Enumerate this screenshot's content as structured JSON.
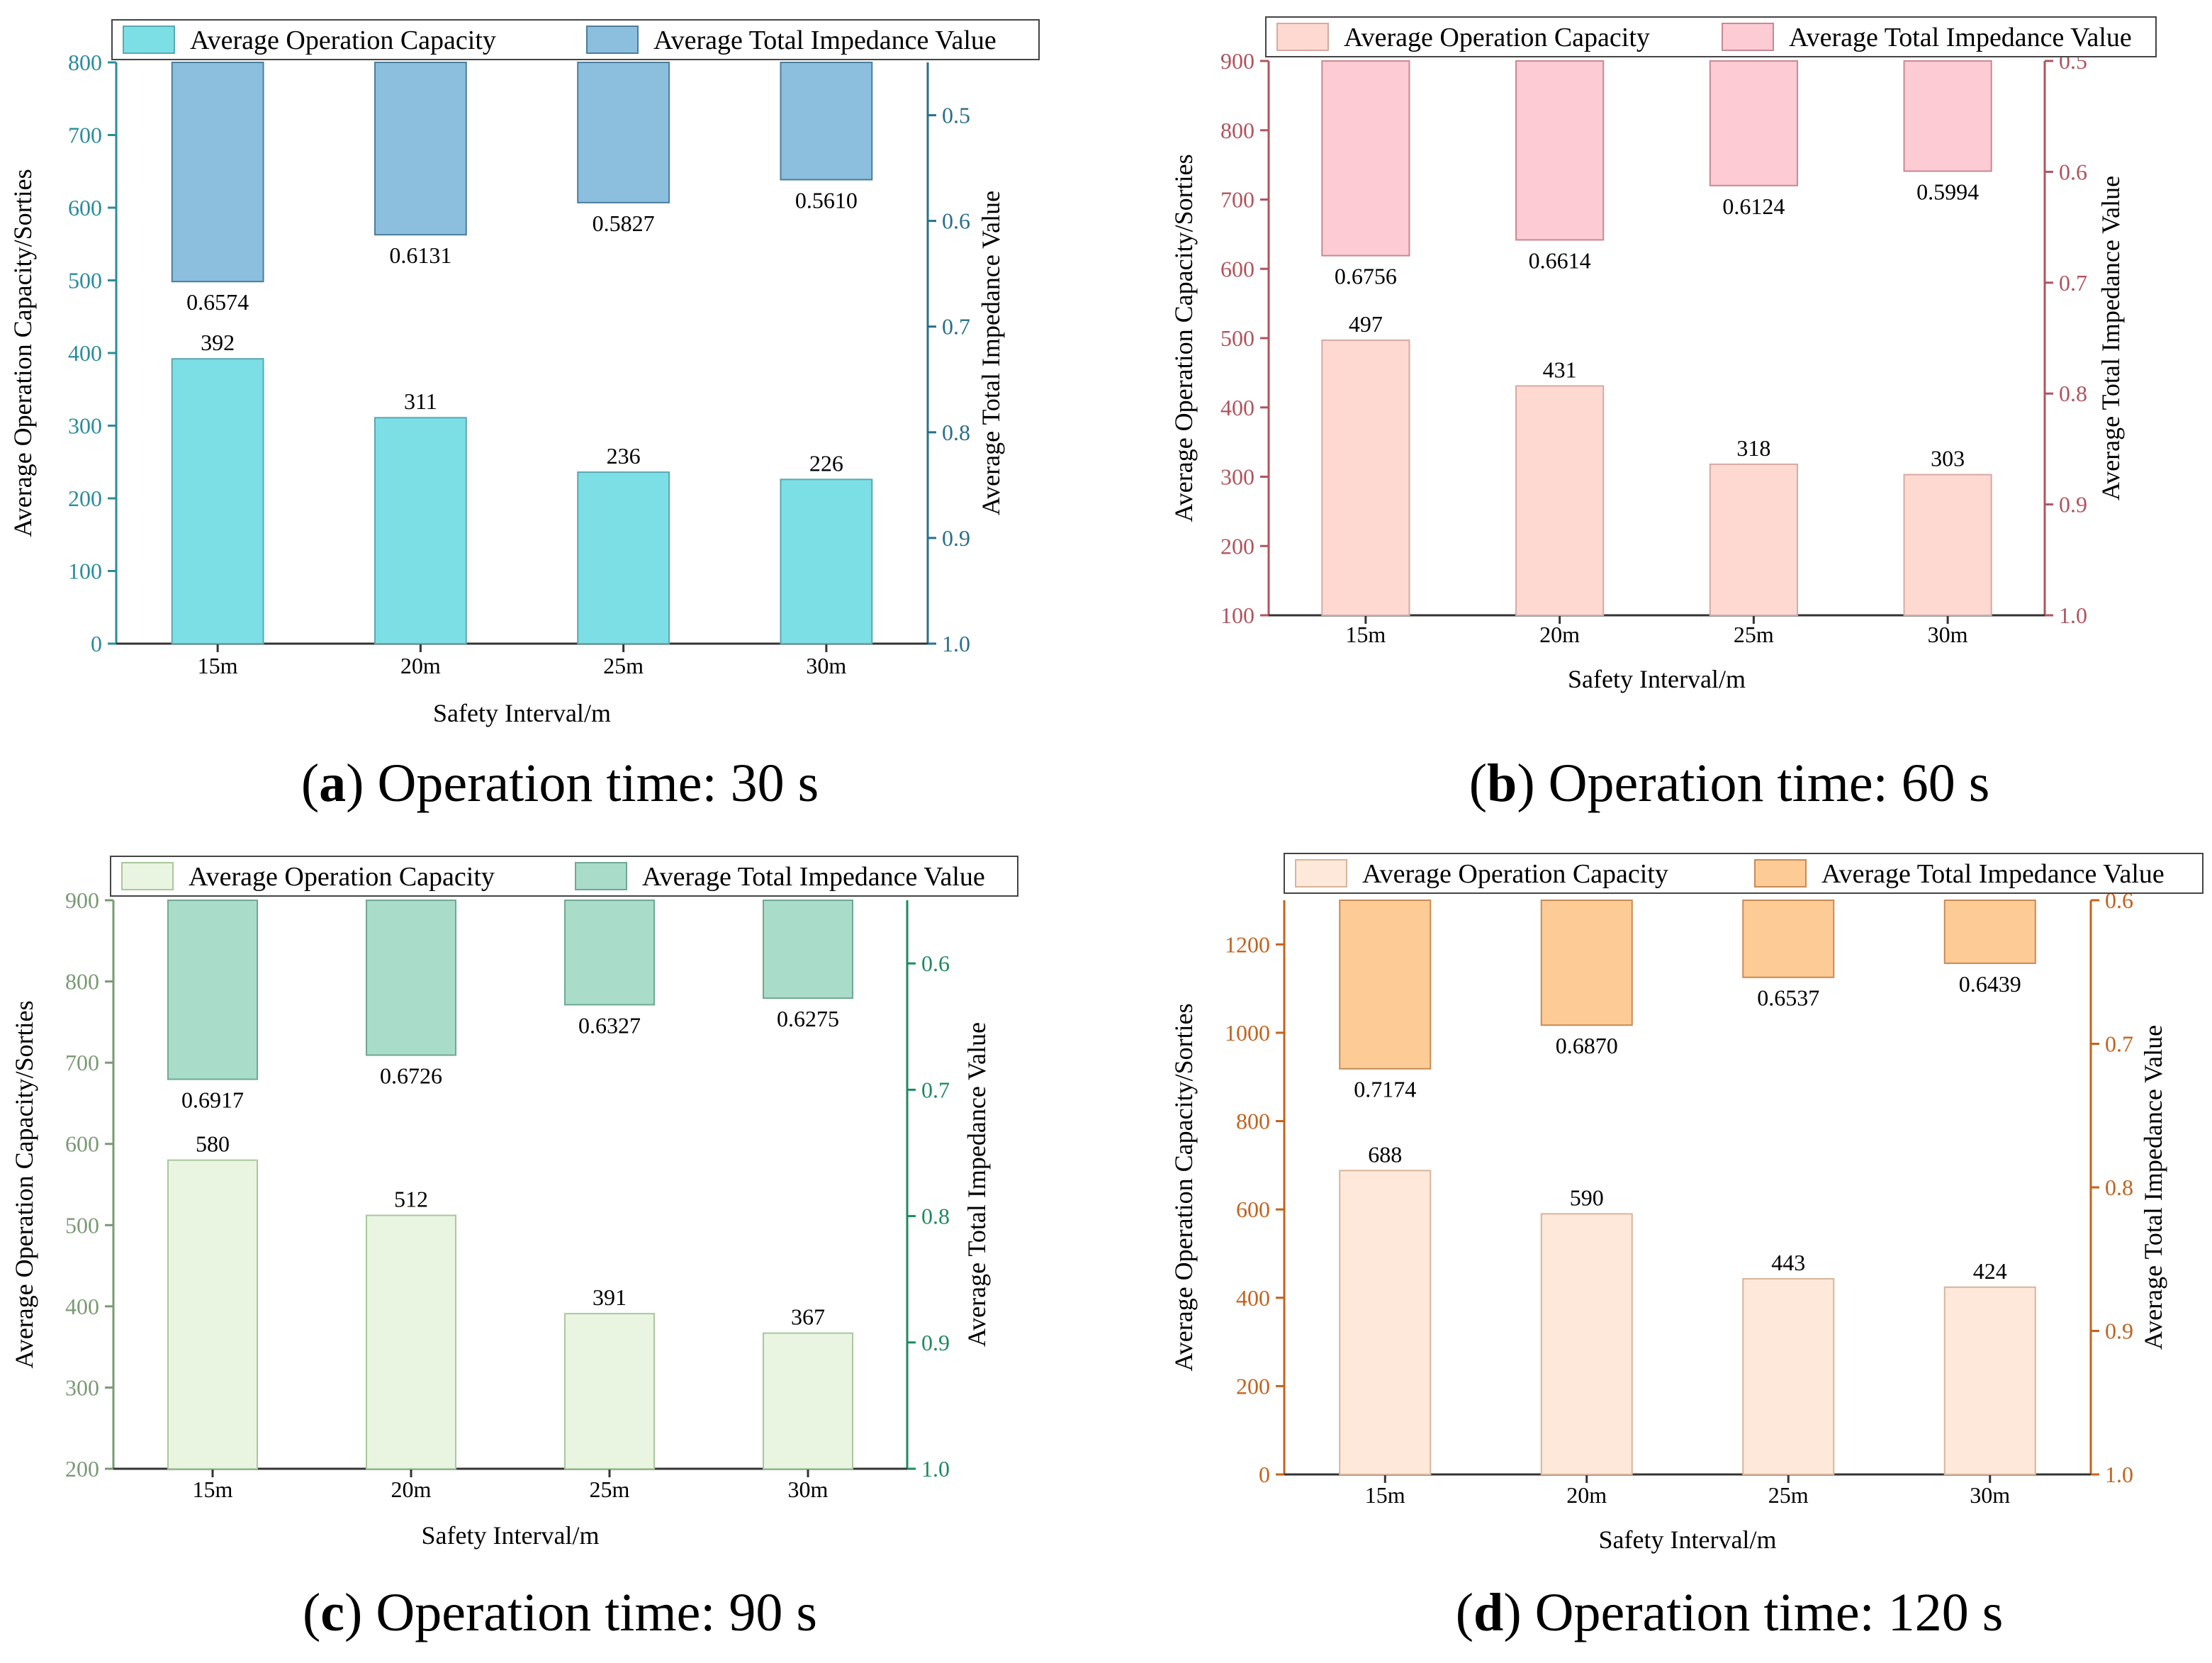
{
  "chart_data": [
    {
      "type": "bar",
      "panel_letter": "a",
      "caption": "Operation time: 30 s",
      "categories": [
        "15m",
        "20m",
        "25m",
        "30m"
      ],
      "xlabel": "Safety Interval/m",
      "ylabel_left": "Average Operation Capacity/Sorties",
      "ylabel_right": "Average  Total Impedance Value",
      "legend": [
        "Average Operation Capacity",
        "Average  Total Impedance Value"
      ],
      "series": [
        {
          "name": "Average Operation Capacity",
          "axis": "left",
          "values": [
            392,
            311,
            236,
            226
          ],
          "labels": [
            "392",
            "311",
            "236",
            "226"
          ]
        },
        {
          "name": "Average  Total Impedance Value",
          "axis": "right",
          "inverted": true,
          "values": [
            0.6574,
            0.6131,
            0.5827,
            0.561
          ],
          "labels": [
            "0.6574",
            "0.6131",
            "0.5827",
            "0.5610"
          ]
        }
      ],
      "ylim_left": [
        0,
        800
      ],
      "yticks_left": [
        0,
        100,
        200,
        300,
        400,
        500,
        600,
        700,
        800
      ],
      "ylim_right": [
        0.45,
        1.0
      ],
      "yticks_right": [
        0.5,
        0.6,
        0.7,
        0.8,
        0.9,
        1.0
      ],
      "ytick_labels_right": [
        "0.5",
        "0.6",
        "0.7",
        "0.8",
        "0.9",
        "1.0"
      ],
      "colors": {
        "capacity_fill": "#7ddfe6",
        "capacity_stroke": "#5aa8b0",
        "impedance_fill": "#8bbfdd",
        "impedance_stroke": "#4b7d9c",
        "left_axis": "#2a8c9a",
        "right_axis": "#2a6f8a"
      }
    },
    {
      "type": "bar",
      "panel_letter": "b",
      "caption": "Operation time: 60 s",
      "categories": [
        "15m",
        "20m",
        "25m",
        "30m"
      ],
      "xlabel": "Safety Interval/m",
      "ylabel_left": "Average Operation Capacity/Sorties",
      "ylabel_right": "Average  Total Impedance Value",
      "legend": [
        "Average Operation Capacity",
        "Average  Total Impedance Value"
      ],
      "series": [
        {
          "name": "Average Operation Capacity",
          "axis": "left",
          "values": [
            497,
            431,
            318,
            303
          ],
          "labels": [
            "497",
            "431",
            "318",
            "303"
          ]
        },
        {
          "name": "Average  Total Impedance Value",
          "axis": "right",
          "inverted": true,
          "values": [
            0.6756,
            0.6614,
            0.6124,
            0.5994
          ],
          "labels": [
            "0.6756",
            "0.6614",
            "0.6124",
            "0.5994"
          ]
        }
      ],
      "ylim_left": [
        100,
        900
      ],
      "yticks_left": [
        100,
        200,
        300,
        400,
        500,
        600,
        700,
        800,
        900
      ],
      "ylim_right": [
        0.5,
        1.0
      ],
      "yticks_right": [
        0.5,
        0.6,
        0.7,
        0.8,
        0.9,
        1.0
      ],
      "ytick_labels_right": [
        "0.5",
        "0.6",
        "0.7",
        "0.8",
        "0.9",
        "1.0"
      ],
      "colors": {
        "capacity_fill": "#fdd9d2",
        "capacity_stroke": "#d6aaa2",
        "impedance_fill": "#fccbd3",
        "impedance_stroke": "#c98893",
        "left_axis": "#b0545e",
        "right_axis": "#b0545e"
      }
    },
    {
      "type": "bar",
      "panel_letter": "c",
      "caption": "Operation time: 90 s",
      "categories": [
        "15m",
        "20m",
        "25m",
        "30m"
      ],
      "xlabel": "Safety Interval/m",
      "ylabel_left": "Average Operation Capacity/Sorties",
      "ylabel_right": "Average  Total Impedance Value",
      "legend": [
        "Average Operation Capacity",
        "Average  Total Impedance Value"
      ],
      "series": [
        {
          "name": "Average Operation Capacity",
          "axis": "left",
          "values": [
            580,
            512,
            391,
            367
          ],
          "labels": [
            "580",
            "512",
            "391",
            "367"
          ]
        },
        {
          "name": "Average  Total Impedance Value",
          "axis": "right",
          "inverted": true,
          "values": [
            0.6917,
            0.6726,
            0.6327,
            0.6275
          ],
          "labels": [
            "0.6917",
            "0.6726",
            "0.6327",
            "0.6275"
          ]
        }
      ],
      "ylim_left": [
        200,
        900
      ],
      "yticks_left": [
        200,
        300,
        400,
        500,
        600,
        700,
        800,
        900
      ],
      "ylim_right": [
        0.55,
        1.0
      ],
      "yticks_right": [
        0.6,
        0.7,
        0.8,
        0.9,
        1.0
      ],
      "ytick_labels_right": [
        "0.6",
        "0.7",
        "0.8",
        "0.9",
        "1.0"
      ],
      "colors": {
        "capacity_fill": "#e9f5e1",
        "capacity_stroke": "#a9c79d",
        "impedance_fill": "#a9dcc9",
        "impedance_stroke": "#6fa894",
        "left_axis": "#7a9a74",
        "right_axis": "#1f8a5e"
      }
    },
    {
      "type": "bar",
      "panel_letter": "d",
      "caption": "Operation time: 120 s",
      "categories": [
        "15m",
        "20m",
        "25m",
        "30m"
      ],
      "xlabel": "Safety Interval/m",
      "ylabel_left": "Average Operation Capacity/Sorties",
      "ylabel_right": "Average  Total Impedance Value",
      "legend": [
        "Average Operation Capacity",
        "Average  Total Impedance Value"
      ],
      "series": [
        {
          "name": "Average Operation Capacity",
          "axis": "left",
          "values": [
            688,
            590,
            443,
            424
          ],
          "labels": [
            "688",
            "590",
            "443",
            "424"
          ]
        },
        {
          "name": "Average  Total Impedance Value",
          "axis": "right",
          "inverted": true,
          "values": [
            0.7174,
            0.687,
            0.6537,
            0.6439
          ],
          "labels": [
            "0.7174",
            "0.6870",
            "0.6537",
            "0.6439"
          ]
        }
      ],
      "ylim_left": [
        0,
        1300
      ],
      "yticks_left": [
        0,
        200,
        400,
        600,
        800,
        1000,
        1200
      ],
      "ylim_right": [
        0.6,
        1.0
      ],
      "yticks_right": [
        0.6,
        0.7,
        0.8,
        0.9,
        1.0
      ],
      "ytick_labels_right": [
        "0.6",
        "0.7",
        "0.8",
        "0.9",
        "1.0"
      ],
      "colors": {
        "capacity_fill": "#fde8d9",
        "capacity_stroke": "#d8b49c",
        "impedance_fill": "#fccb96",
        "impedance_stroke": "#c98b55",
        "left_axis": "#c2631f",
        "right_axis": "#c2631f"
      }
    }
  ]
}
